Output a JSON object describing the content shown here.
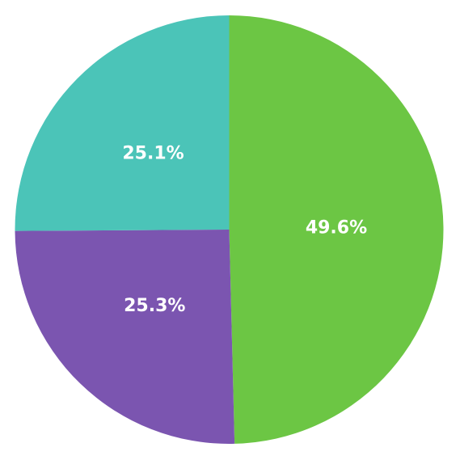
{
  "chart_data": {
    "type": "pie",
    "values": [
      49.6,
      25.3,
      25.1
    ],
    "value_labels": [
      "49.6%",
      "25.3%",
      "25.1%"
    ],
    "colors": [
      "#6cc644",
      "#7b55b0",
      "#4bc4b8"
    ]
  }
}
